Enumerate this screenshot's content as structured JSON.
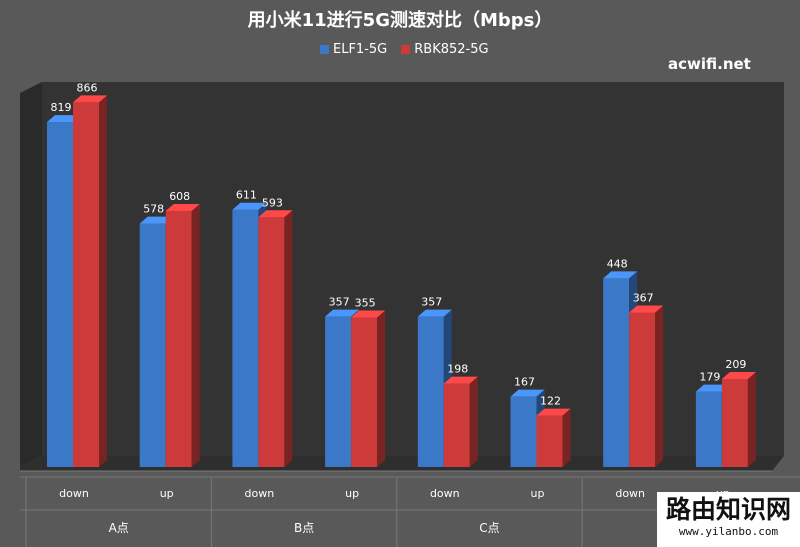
{
  "chart_data": {
    "type": "bar",
    "title": "用小米11进行5G测速对比（Mbps）",
    "categories": [
      "down",
      "up",
      "down",
      "up",
      "down",
      "up",
      "down",
      "up"
    ],
    "groups": [
      {
        "label": "A点",
        "span": 2
      },
      {
        "label": "B点",
        "span": 2
      },
      {
        "label": "C点",
        "span": 2
      },
      {
        "label": "",
        "span": 2
      }
    ],
    "series": [
      {
        "name": "ELF1-5G",
        "values": [
          819,
          578,
          611,
          357,
          357,
          167,
          448,
          179
        ],
        "color": "#3b78c8"
      },
      {
        "name": "RBK852-5G",
        "values": [
          866,
          608,
          593,
          355,
          198,
          122,
          367,
          209
        ],
        "color": "#cc3a3a"
      }
    ],
    "ylim": [
      0,
      900
    ],
    "grid": false,
    "legend_position": "top"
  },
  "watermark": "acwifi.net",
  "badge": {
    "title": "路由知识网",
    "url": "www.yilanbo.com"
  }
}
